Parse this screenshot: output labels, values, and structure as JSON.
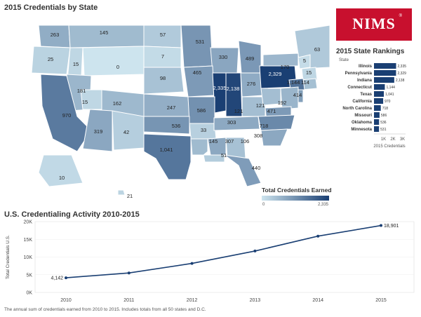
{
  "map": {
    "title": "2015 Credentials by State",
    "legend_title": "Total Credentials Earned",
    "legend_min": "0",
    "legend_max": "2,335",
    "color_low": "#cde4ee",
    "color_high": "#1a3f73",
    "state_labels": [
      "263",
      "145",
      "57",
      "25",
      "15",
      "0",
      "7",
      "531",
      "330",
      "489",
      "63",
      "98",
      "465",
      "2,335",
      "2,138",
      "276",
      "2,329",
      "170",
      "5",
      "15",
      "114",
      "1,144",
      "414",
      "181",
      "15",
      "162",
      "247",
      "586",
      "121",
      "121",
      "192",
      "471",
      "970",
      "319",
      "42",
      "536",
      "33",
      "303",
      "718",
      "308",
      "1,041",
      "145",
      "307",
      "106",
      "51",
      "440",
      "10",
      "21"
    ]
  },
  "logo": {
    "text": "NIMS",
    "mark": "®"
  },
  "rankings": {
    "title": "2015 State Rankings",
    "state_header": "State",
    "axis_title": "2015 Credentials",
    "axis_ticks": [
      "1K",
      "2K",
      "3K"
    ],
    "bar_color": "#1a3f73",
    "rows": [
      {
        "state": "Illinois",
        "value": 2335,
        "label": "2,335"
      },
      {
        "state": "Pennsylvania",
        "value": 2329,
        "label": "2,329"
      },
      {
        "state": "Indiana",
        "value": 2138,
        "label": "2,138"
      },
      {
        "state": "Connecticut",
        "value": 1144,
        "label": "1,144"
      },
      {
        "state": "Texas",
        "value": 1041,
        "label": "1,041"
      },
      {
        "state": "California",
        "value": 970,
        "label": "970"
      },
      {
        "state": "North Carolina",
        "value": 718,
        "label": "718"
      },
      {
        "state": "Missouri",
        "value": 586,
        "label": "586"
      },
      {
        "state": "Oklahoma",
        "value": 536,
        "label": "536"
      },
      {
        "state": "Minnesota",
        "value": 531,
        "label": "531"
      }
    ]
  },
  "activity": {
    "title": "U.S. Credentialing Activity 2010-2015",
    "footnote": "The annual sum of credentials earned from 2010 to 2015. Includes totals from all 50 states and D.C."
  },
  "chart_data": {
    "type": "line",
    "x": [
      "2010",
      "2011",
      "2012",
      "2013",
      "2014",
      "2015"
    ],
    "series": [
      {
        "values": [
          4142,
          5500,
          8200,
          11700,
          15900,
          18901
        ]
      }
    ],
    "ylabel": "Total Credentials U.S.",
    "yticks": [
      "0K",
      "5K",
      "10K",
      "15K",
      "20K"
    ],
    "ylim": [
      0,
      20000
    ],
    "data_labels": [
      "4,142",
      "18,901"
    ],
    "line_color": "#1a3f73"
  }
}
